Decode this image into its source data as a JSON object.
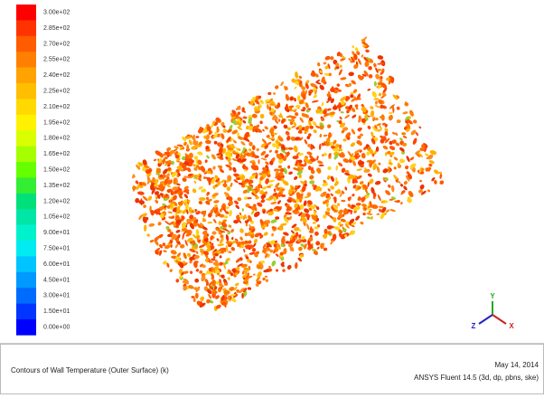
{
  "colorbar": {
    "labels": [
      "3.00e+02",
      "2.85e+02",
      "2.70e+02",
      "2.55e+02",
      "2.40e+02",
      "2.25e+02",
      "2.10e+02",
      "1.95e+02",
      "1.80e+02",
      "1.65e+02",
      "1.50e+02",
      "1.35e+02",
      "1.20e+02",
      "1.05e+02",
      "9.00e+01",
      "7.50e+01",
      "6.00e+01",
      "4.50e+01",
      "3.00e+01",
      "1.50e+01",
      "0.00e+00"
    ],
    "colors": [
      "#ff0000",
      "#ff3300",
      "#ff5c00",
      "#ff8000",
      "#ffa300",
      "#ffbf00",
      "#ffd900",
      "#fff200",
      "#d9ff00",
      "#a6ff00",
      "#66ff00",
      "#33ee33",
      "#00e07a",
      "#00e6a6",
      "#00f2cc",
      "#00ecf2",
      "#00c4ff",
      "#0099ff",
      "#006bff",
      "#0036ff",
      "#0000ff"
    ]
  },
  "triad": {
    "y": "Y",
    "z": "Z",
    "x": "X"
  },
  "footer": {
    "title": "Contours of Wall Temperature (Outer Surface) (k)",
    "date": "May 14, 2014",
    "software": "ANSYS Fluent 14.5 (3d, dp, pbns, ske)"
  }
}
